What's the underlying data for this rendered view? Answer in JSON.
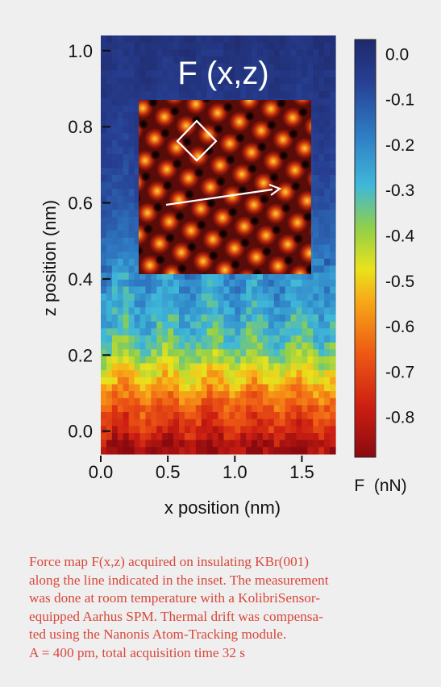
{
  "chart_data": {
    "type": "heatmap",
    "title": "F (x,z)",
    "xlabel": "x position (nm)",
    "ylabel": "z position (nm)",
    "x_ticks": [
      "0.0",
      "0.5",
      "1.0",
      "1.5"
    ],
    "x_tick_values": [
      0.0,
      0.5,
      1.0,
      1.5
    ],
    "y_ticks": [
      "0.0",
      "0.2",
      "0.4",
      "0.6",
      "0.8",
      "1.0"
    ],
    "y_tick_values": [
      0.0,
      0.2,
      0.4,
      0.6,
      0.8,
      1.0
    ],
    "xlim": [
      0.0,
      1.75
    ],
    "ylim": [
      -0.06,
      1.04
    ],
    "colorbar": {
      "label": "F  (nN)",
      "ticks": [
        "0.0",
        "-0.1",
        "-0.2",
        "-0.3",
        "-0.4",
        "-0.5",
        "-0.6",
        "-0.7",
        "-0.8"
      ],
      "tick_values": [
        0.0,
        -0.1,
        -0.2,
        -0.3,
        -0.4,
        -0.5,
        -0.6,
        -0.7,
        -0.8
      ],
      "range": [
        -0.9,
        0.02
      ],
      "colormap": [
        "#8b0a10",
        "#cc1e12",
        "#ee5a14",
        "#f7a618",
        "#eae21c",
        "#8fcf4a",
        "#3fb8d9",
        "#2f7dc5",
        "#273f92",
        "#1f2a6c"
      ]
    },
    "force_profile": [
      {
        "z": 1.04,
        "F": -0.02
      },
      {
        "z": 0.9,
        "F": -0.04
      },
      {
        "z": 0.8,
        "F": -0.06
      },
      {
        "z": 0.7,
        "F": -0.08
      },
      {
        "z": 0.6,
        "F": -0.11
      },
      {
        "z": 0.5,
        "F": -0.16
      },
      {
        "z": 0.42,
        "F": -0.22
      },
      {
        "z": 0.35,
        "F": -0.26
      },
      {
        "z": 0.28,
        "F": -0.3
      },
      {
        "z": 0.22,
        "F": -0.36
      },
      {
        "z": 0.16,
        "F": -0.48
      },
      {
        "z": 0.1,
        "F": -0.6
      },
      {
        "z": 0.05,
        "F": -0.7
      },
      {
        "z": 0.0,
        "F": -0.78
      },
      {
        "z": -0.04,
        "F": -0.86
      }
    ],
    "inset": {
      "description_colors": [
        "#000000",
        "#5a0c08",
        "#b7210c",
        "#ea6a12",
        "#fbd23e"
      ]
    }
  },
  "caption": {
    "lines": [
      "Force map F(x,z) acquired on insulating KBr(001)",
      "along the line indicated in the inset. The measurement",
      "was done at room temperature with a KolibriSensor-",
      "equipped Aarhus SPM. Thermal drift was compensa-",
      "ted using the Nanonis Atom-Tracking module.",
      "A = 400 pm,  total acquisition time 32 s"
    ],
    "color": "#d8473a"
  }
}
